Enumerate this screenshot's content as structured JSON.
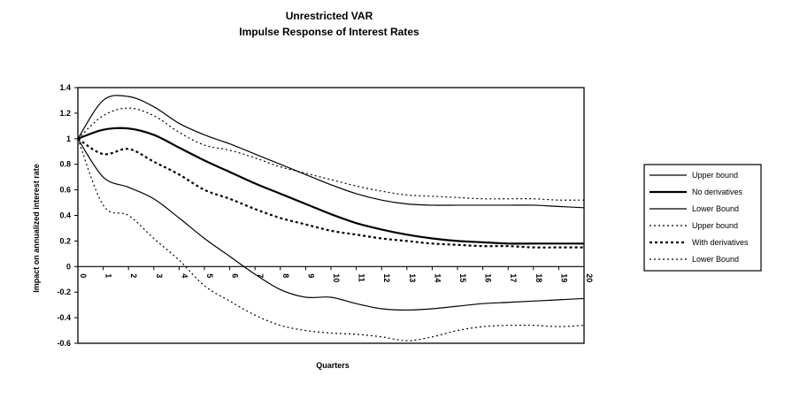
{
  "chart_data": {
    "type": "line",
    "title": "Unrestricted VAR",
    "subtitle": "Impulse Response of Interest Rates",
    "xlabel": "Quarters",
    "ylabel": "Impact on annualized interest rate",
    "xlim": [
      0,
      20
    ],
    "ylim": [
      -0.6,
      1.4
    ],
    "x_ticks": [
      "0",
      "1",
      "2",
      "3",
      "4",
      "5",
      "6",
      "7",
      "8",
      "9",
      "10",
      "11",
      "12",
      "13",
      "14",
      "15",
      "16",
      "17",
      "18",
      "19",
      "20"
    ],
    "y_ticks": [
      "1.4",
      "1.2",
      "1",
      "0.8",
      "0.6",
      "0.4",
      "0.2",
      "0",
      "-0.2",
      "-0.4",
      "-0.6"
    ],
    "grid": false,
    "legend_position": "right",
    "x": [
      0,
      1,
      2,
      3,
      4,
      5,
      6,
      7,
      8,
      9,
      10,
      11,
      12,
      13,
      14,
      15,
      16,
      17,
      18,
      19,
      20
    ],
    "series": [
      {
        "name": "Upper bound",
        "style": "solid",
        "width": 1.2,
        "values": [
          1.0,
          1.3,
          1.33,
          1.25,
          1.12,
          1.03,
          0.96,
          0.88,
          0.8,
          0.72,
          0.64,
          0.57,
          0.52,
          0.49,
          0.48,
          0.48,
          0.48,
          0.48,
          0.48,
          0.47,
          0.46
        ]
      },
      {
        "name": "No derivatives",
        "style": "solid",
        "width": 2.2,
        "values": [
          1.0,
          1.07,
          1.08,
          1.03,
          0.93,
          0.83,
          0.74,
          0.65,
          0.57,
          0.49,
          0.41,
          0.34,
          0.29,
          0.25,
          0.22,
          0.2,
          0.19,
          0.18,
          0.18,
          0.18,
          0.18
        ]
      },
      {
        "name": "Lower Bound",
        "style": "solid",
        "width": 1.2,
        "values": [
          1.0,
          0.7,
          0.62,
          0.53,
          0.38,
          0.22,
          0.08,
          -0.06,
          -0.18,
          -0.24,
          -0.24,
          -0.29,
          -0.33,
          -0.34,
          -0.33,
          -0.31,
          -0.29,
          -0.28,
          -0.27,
          -0.26,
          -0.25
        ]
      },
      {
        "name": "Upper bound",
        "style": "dotted",
        "width": 1.2,
        "values": [
          1.0,
          1.18,
          1.24,
          1.18,
          1.05,
          0.95,
          0.91,
          0.85,
          0.78,
          0.73,
          0.68,
          0.63,
          0.59,
          0.56,
          0.55,
          0.54,
          0.53,
          0.53,
          0.53,
          0.52,
          0.52
        ]
      },
      {
        "name": "With derivatives",
        "style": "dotted",
        "width": 2.2,
        "values": [
          1.0,
          0.88,
          0.92,
          0.82,
          0.72,
          0.6,
          0.53,
          0.45,
          0.38,
          0.33,
          0.28,
          0.25,
          0.22,
          0.2,
          0.18,
          0.17,
          0.16,
          0.16,
          0.15,
          0.15,
          0.15
        ]
      },
      {
        "name": "Lower Bound",
        "style": "dotted",
        "width": 1.2,
        "values": [
          1.0,
          0.48,
          0.4,
          0.22,
          0.05,
          -0.15,
          -0.27,
          -0.38,
          -0.46,
          -0.5,
          -0.52,
          -0.53,
          -0.55,
          -0.58,
          -0.55,
          -0.5,
          -0.47,
          -0.46,
          -0.46,
          -0.47,
          -0.46
        ]
      }
    ]
  }
}
